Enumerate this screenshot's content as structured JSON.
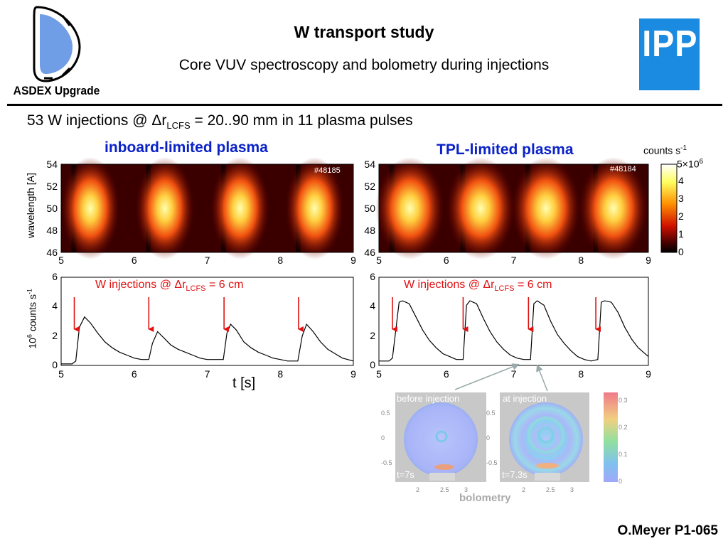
{
  "header": {
    "logo_caption": "ASDEX Upgrade",
    "title": "W transport study",
    "subtitle": "Core VUV spectroscopy and bolometry during injections",
    "ipp_logo": "IPP"
  },
  "headline": {
    "prefix": "53 W injections @ ",
    "delta_r": "Δr",
    "sub": "LCFS",
    "suffix": " = 20..90 mm in 11 plasma pulses"
  },
  "left_panel": {
    "title": "inboard-limited plasma",
    "shot": "#48185",
    "annotation": "W injections @ Δr",
    "annotation_sub": "LCFS",
    "annotation_suffix": " = 6 cm"
  },
  "right_panel": {
    "title": "TPL-limited plasma",
    "shot": "#48184",
    "annotation": "W injections @ Δr",
    "annotation_sub": "LCFS",
    "annotation_suffix": " = 6 cm"
  },
  "colorbar": {
    "label": "counts s",
    "label_sup": "-1",
    "top_label": "5×10",
    "top_sup": "6",
    "ticks": [
      "4",
      "3",
      "2",
      "1",
      "0"
    ]
  },
  "axes": {
    "wavelength_label": "wavelength [A]",
    "wavelength_ticks": [
      "54",
      "52",
      "50",
      "48",
      "46"
    ],
    "time_ticks": [
      "5",
      "6",
      "7",
      "8",
      "9"
    ],
    "counts_label_pre": "10",
    "counts_label_sup": "6",
    "counts_label_mid": " counts s",
    "counts_label_sup2": "-1",
    "counts_ticks": [
      "6",
      "4",
      "2",
      "0"
    ],
    "time_label": "t [s]"
  },
  "bolometry": {
    "panel1_title": "before injection",
    "panel1_time": "t=7s",
    "panel2_title": "at injection",
    "panel2_time": "t=7.3s",
    "y_ticks": [
      "0.5",
      "0",
      "-0.5"
    ],
    "x_ticks": [
      "2",
      "2.5",
      "3"
    ],
    "colorbar_ticks": [
      "0.3",
      "0.2",
      "0.1",
      "0"
    ],
    "label": "bolometry"
  },
  "footer": {
    "author": "O.Meyer P1-065"
  },
  "chart_data": [
    {
      "type": "line",
      "title": "inboard-limited plasma",
      "xlabel": "t [s]",
      "ylabel": "10^6 counts s^-1",
      "xlim": [
        5,
        9
      ],
      "ylim": [
        0,
        6
      ],
      "annotation": "W injections @ ΔrLCFS = 6 cm",
      "injection_times": [
        5.18,
        6.2,
        7.23,
        8.25
      ],
      "series": [
        {
          "x": [
            5.0,
            5.15,
            5.2,
            5.25,
            5.32,
            5.4,
            5.5,
            5.6,
            5.7,
            5.8,
            5.9,
            6.0,
            6.1,
            6.2,
            6.25,
            6.32,
            6.4,
            6.5,
            6.6,
            6.7,
            6.8,
            6.9,
            7.0,
            7.1,
            7.22,
            7.27,
            7.32,
            7.4,
            7.5,
            7.6,
            7.7,
            7.8,
            7.9,
            8.0,
            8.1,
            8.24,
            8.3,
            8.36,
            8.45,
            8.55,
            8.65,
            8.75,
            8.85,
            9.0
          ],
          "y": [
            0.1,
            0.1,
            0.3,
            2.6,
            3.3,
            2.9,
            2.2,
            1.6,
            1.2,
            0.9,
            0.7,
            0.5,
            0.4,
            0.4,
            1.5,
            2.3,
            1.9,
            1.4,
            1.1,
            0.9,
            0.7,
            0.5,
            0.4,
            0.4,
            0.4,
            2.2,
            2.8,
            2.4,
            1.6,
            1.2,
            0.9,
            0.7,
            0.5,
            0.4,
            0.3,
            0.3,
            2.0,
            2.8,
            2.3,
            1.6,
            1.1,
            0.8,
            0.5,
            0.3
          ]
        }
      ]
    },
    {
      "type": "line",
      "title": "TPL-limited plasma",
      "xlim": [
        5,
        9
      ],
      "ylim": [
        0,
        6
      ],
      "annotation": "W injections @ ΔrLCFS = 6 cm",
      "injection_times": [
        5.2,
        6.25,
        7.22,
        8.22
      ],
      "series": [
        {
          "x": [
            5.0,
            5.15,
            5.2,
            5.3,
            5.35,
            5.45,
            5.55,
            5.65,
            5.75,
            5.85,
            5.95,
            6.05,
            6.15,
            6.25,
            6.3,
            6.35,
            6.45,
            6.55,
            6.65,
            6.75,
            6.85,
            6.95,
            7.05,
            7.15,
            7.25,
            7.3,
            7.35,
            7.45,
            7.55,
            7.65,
            7.75,
            7.85,
            7.95,
            8.05,
            8.15,
            8.25,
            8.3,
            8.35,
            8.45,
            8.55,
            8.65,
            8.75,
            8.85,
            9.0
          ],
          "y": [
            0.3,
            0.3,
            0.5,
            4.3,
            4.4,
            4.2,
            3.3,
            2.4,
            1.7,
            1.2,
            0.8,
            0.6,
            0.4,
            0.4,
            4.1,
            4.4,
            4.2,
            3.2,
            2.3,
            1.6,
            1.1,
            0.7,
            0.5,
            0.4,
            0.4,
            4.2,
            4.4,
            4.1,
            3.0,
            2.1,
            1.5,
            1.0,
            0.6,
            0.4,
            0.3,
            0.4,
            4.3,
            4.4,
            4.3,
            3.6,
            2.6,
            1.8,
            1.2,
            0.6
          ]
        }
      ]
    }
  ]
}
